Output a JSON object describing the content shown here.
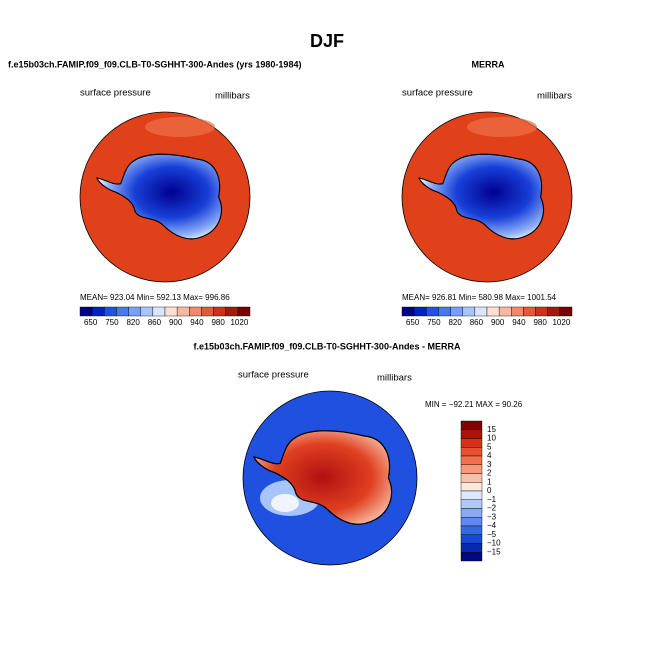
{
  "title": "DJF",
  "panels": [
    {
      "title": "f.e15b03ch.FAMIP.f09_f09.CLB-T0-SGHHT-300-Andes (yrs 1980-1984)",
      "left_label": "surface pressure",
      "right_label": "millibars",
      "stats": "MEAN= 923.04   Min= 592.13   Max= 996.86",
      "colorbar": {
        "labels": [
          "650",
          "750",
          "820",
          "860",
          "900",
          "940",
          "980",
          "1020"
        ],
        "colors": [
          "#00008b",
          "#0020c8",
          "#2050e8",
          "#4878f0",
          "#78a0f8",
          "#a8c4fc",
          "#d8e6ff",
          "#fde0d0",
          "#fbb8a0",
          "#f48868",
          "#e85838",
          "#d03018",
          "#a81808",
          "#780000"
        ]
      }
    },
    {
      "title": "MERRA",
      "left_label": "surface pressure",
      "right_label": "millibars",
      "stats": "MEAN= 926.81   Min= 580.98   Max= 1001.54",
      "colorbar": {
        "labels": [
          "650",
          "750",
          "820",
          "860",
          "900",
          "940",
          "980",
          "1020"
        ],
        "colors": [
          "#00008b",
          "#0020c8",
          "#2050e8",
          "#4878f0",
          "#78a0f8",
          "#a8c4fc",
          "#d8e6ff",
          "#fde0d0",
          "#fbb8a0",
          "#f48868",
          "#e85838",
          "#d03018",
          "#a81808",
          "#780000"
        ]
      }
    }
  ],
  "difference": {
    "title": "f.e15b03ch.FAMIP.f09_f09.CLB-T0-SGHHT-300-Andes - MERRA",
    "left_label": "surface pressure",
    "right_label": "millibars",
    "stats": "MIN = −92.21 MAX =  90.26",
    "colorbar": {
      "labels": [
        "15",
        "10",
        "5",
        "4",
        "3",
        "2",
        "1",
        "0",
        "−1",
        "−2",
        "−3",
        "−4",
        "−5",
        "−10",
        "−15"
      ],
      "colors": [
        "#800000",
        "#b01008",
        "#d83018",
        "#e85030",
        "#f07050",
        "#f49878",
        "#f8c0a8",
        "#fde6dc",
        "#dce8ff",
        "#b0c8fc",
        "#88a8f8",
        "#6088f0",
        "#3868e8",
        "#1848d8",
        "#0828b0",
        "#000880"
      ]
    }
  }
}
